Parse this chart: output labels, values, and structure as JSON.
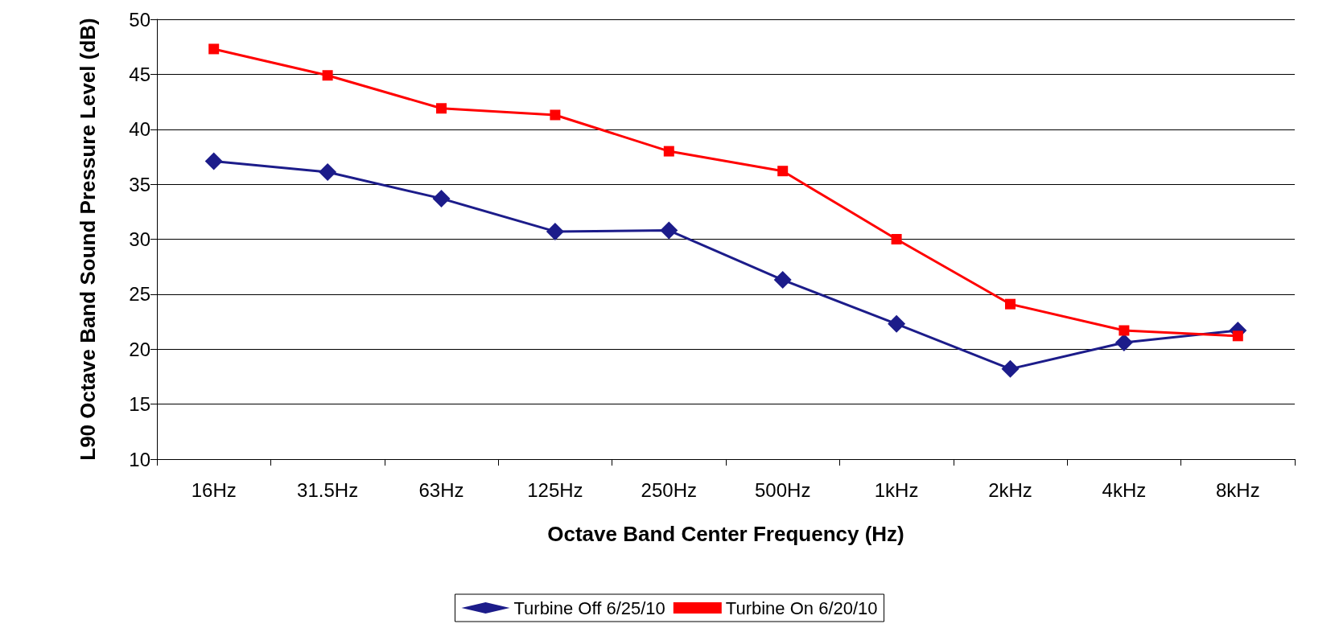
{
  "chart_data": {
    "type": "line",
    "xlabel": "Octave Band Center Frequency (Hz)",
    "ylabel": "L90 Octave Band Sound Pressure Level (dB)",
    "categories": [
      "16Hz",
      "31.5Hz",
      "63Hz",
      "125Hz",
      "250Hz",
      "500Hz",
      "1kHz",
      "2kHz",
      "4kHz",
      "8kHz"
    ],
    "series": [
      {
        "name": "Turbine Off 6/25/10",
        "color": "#1c1c8a",
        "marker": "diamond",
        "values": [
          37.1,
          36.1,
          33.7,
          30.7,
          30.8,
          26.3,
          22.3,
          18.2,
          20.6,
          21.7
        ]
      },
      {
        "name": "Turbine On 6/20/10",
        "color": "#ff0000",
        "marker": "square",
        "values": [
          47.3,
          44.9,
          41.9,
          41.3,
          38.0,
          36.2,
          30.0,
          24.1,
          21.7,
          21.2
        ]
      }
    ],
    "ylim": [
      10,
      50
    ],
    "yticks": [
      10,
      15,
      20,
      25,
      30,
      35,
      40,
      45,
      50
    ],
    "grid": "y",
    "legend": "bottom",
    "line_style": "solid"
  }
}
